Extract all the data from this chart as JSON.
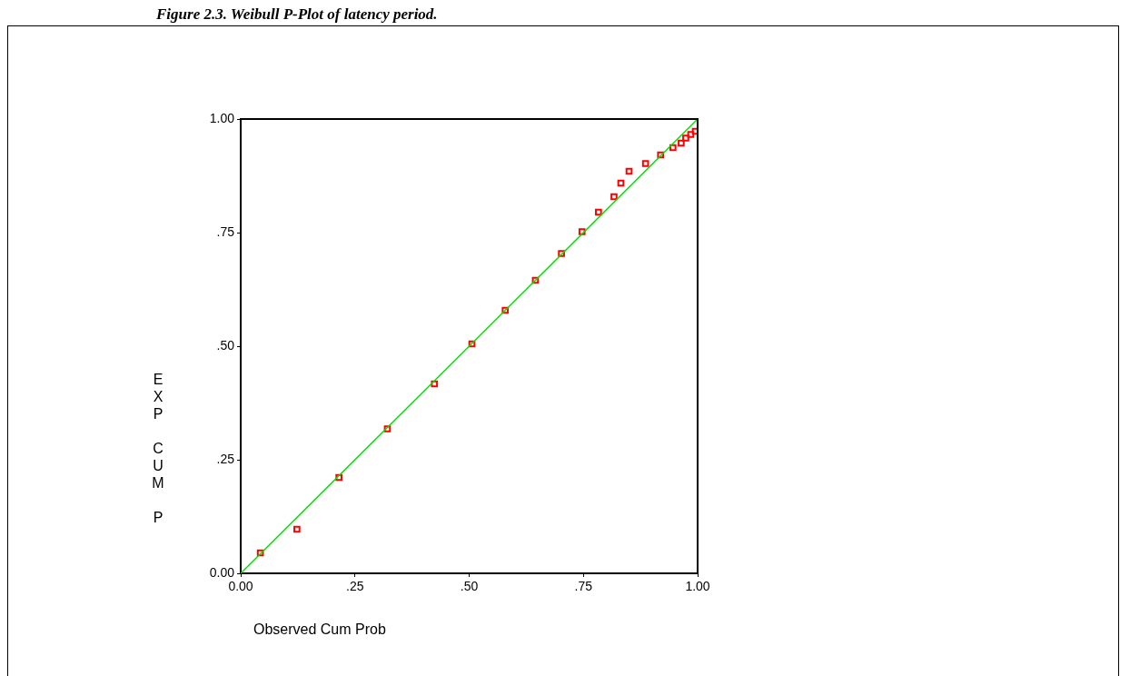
{
  "chart_data": {
    "type": "scatter",
    "title": "Figure 2.3. Weibull P-Plot of latency period.",
    "xlabel": "Observed Cum Prob",
    "ylabel": "EXP CUM P",
    "xlim": [
      0,
      1
    ],
    "ylim": [
      0,
      1
    ],
    "xticks": [
      {
        "value": 0,
        "label": "0.00"
      },
      {
        "value": 0.25,
        "label": ".25"
      },
      {
        "value": 0.5,
        "label": ".50"
      },
      {
        "value": 0.75,
        "label": ".75"
      },
      {
        "value": 1,
        "label": "1.00"
      }
    ],
    "yticks": [
      {
        "value": 0,
        "label": "0.00"
      },
      {
        "value": 0.25,
        "label": ".25"
      },
      {
        "value": 0.5,
        "label": ".50"
      },
      {
        "value": 0.75,
        "label": ".75"
      },
      {
        "value": 1,
        "label": "1.00"
      }
    ],
    "grid": false,
    "marker": "square",
    "series": [
      {
        "type": "line",
        "color": "#00e000",
        "marker": "none",
        "line_style": "solid",
        "x": [
          0,
          1
        ],
        "values": [
          0,
          1
        ]
      },
      {
        "color": "#ff0000",
        "x": [
          0.043,
          0.123,
          0.215,
          0.321,
          0.424,
          0.506,
          0.579,
          0.645,
          0.702,
          0.747,
          0.783,
          0.817,
          0.832,
          0.85,
          0.886,
          0.919,
          0.946,
          0.964,
          0.974,
          0.985,
          0.995
        ],
        "values": [
          0.045,
          0.097,
          0.211,
          0.318,
          0.417,
          0.505,
          0.579,
          0.645,
          0.704,
          0.752,
          0.795,
          0.829,
          0.859,
          0.885,
          0.902,
          0.921,
          0.937,
          0.947,
          0.958,
          0.966,
          0.973
        ]
      }
    ]
  }
}
